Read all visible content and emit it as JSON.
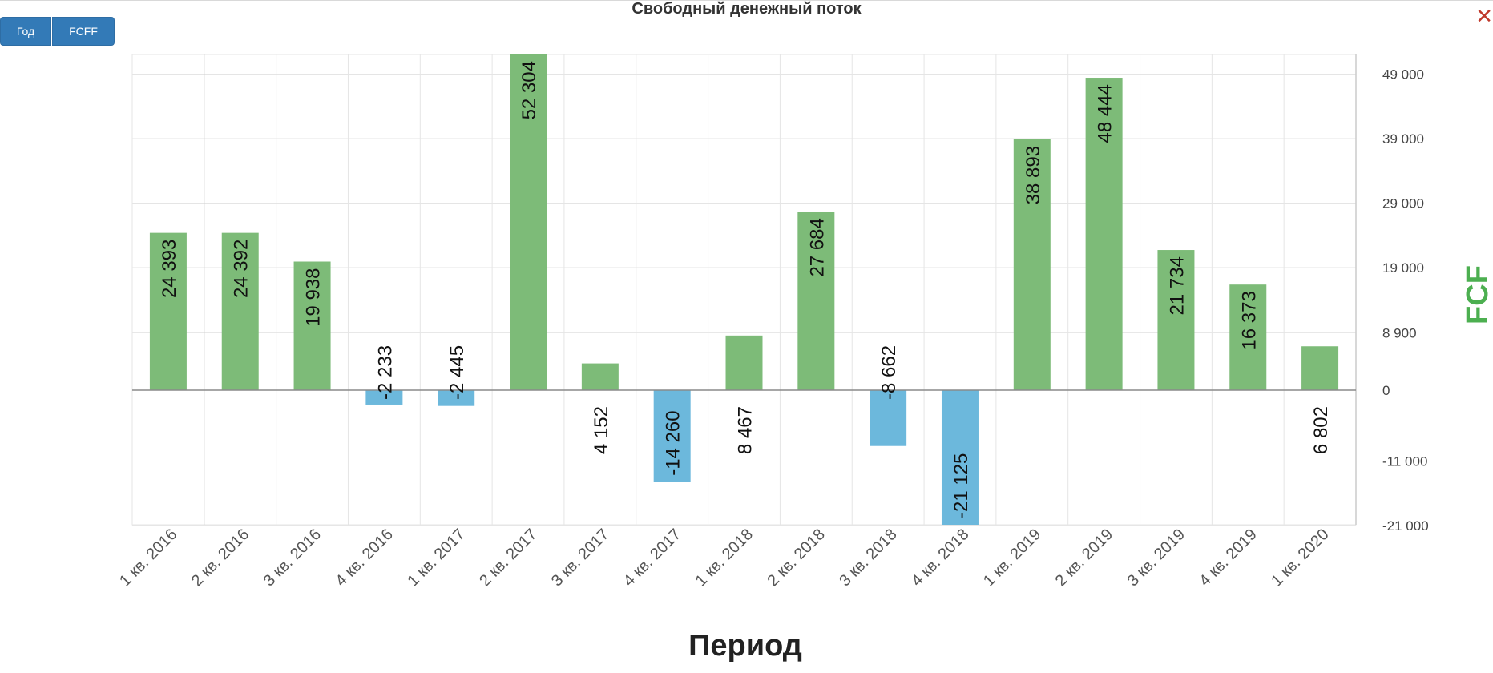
{
  "toolbar": {
    "year_label": "Год",
    "fcff_label": "FCFF"
  },
  "close_icon": "close-icon",
  "colors": {
    "positive": "#7dbb78",
    "negative": "#6cb8dc",
    "ylabel": "#4caf50",
    "grid": "#e5e5e5"
  },
  "chart_data": {
    "type": "bar",
    "title": "Свободный денежный поток",
    "xlabel": "Период",
    "ylabel": "FCF",
    "categories": [
      "1 кв. 2016",
      "2 кв. 2016",
      "3 кв. 2016",
      "4 кв. 2016",
      "1 кв. 2017",
      "2 кв. 2017",
      "3 кв. 2017",
      "4 кв. 2017",
      "1 кв. 2018",
      "2 кв. 2018",
      "3 кв. 2018",
      "4 кв. 2018",
      "1 кв. 2019",
      "2 кв. 2019",
      "3 кв. 2019",
      "4 кв. 2019",
      "1 кв. 2020"
    ],
    "values": [
      24393,
      24392,
      19938,
      -2233,
      -2445,
      52304,
      4152,
      -14260,
      8467,
      27684,
      -8662,
      -21125,
      38893,
      48444,
      21734,
      16373,
      6802
    ],
    "value_labels": [
      "24 393",
      "24 392",
      "19 938",
      "-2 233",
      "-2 445",
      "52 304",
      "4 152",
      "-14 260",
      "8 467",
      "27 684",
      "-8 662",
      "-21 125",
      "38 893",
      "48 444",
      "21 734",
      "16 373",
      "6 802"
    ],
    "yticks": [
      49000,
      39000,
      29000,
      19000,
      8900,
      0,
      -11000,
      -21000
    ],
    "ytick_labels": [
      "49 000",
      "39 000",
      "29 000",
      "19 000",
      "8 900",
      "0",
      "-11 000",
      "-21 000"
    ],
    "ylim": [
      -21000,
      49000
    ],
    "yaxis_side": "right",
    "grid": true
  }
}
